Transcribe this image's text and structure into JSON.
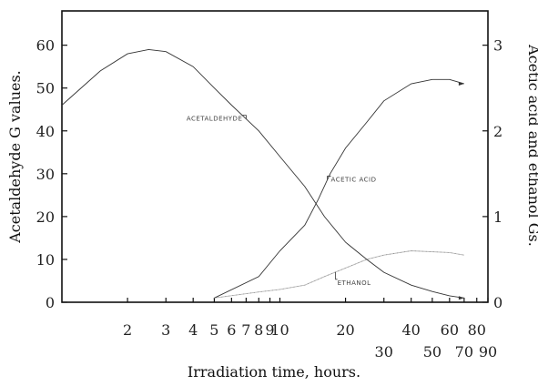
{
  "chart_data": {
    "type": "line",
    "xlabel": "Irradiation time, hours.",
    "ylabel_left": "Acetaldehyde G values.",
    "ylabel_right": "Acetic acid and ethanol Gs.",
    "x_scale": "log",
    "xlim": [
      1,
      90
    ],
    "ylim_left": [
      0,
      68
    ],
    "ylim_right": [
      0,
      3.4
    ],
    "x_ticks": [
      {
        "value": 2,
        "label": "2",
        "row": 1
      },
      {
        "value": 3,
        "label": "3",
        "row": 1
      },
      {
        "value": 4,
        "label": "4",
        "row": 1
      },
      {
        "value": 5,
        "label": "5",
        "row": 1
      },
      {
        "value": 6,
        "label": "6",
        "row": 1
      },
      {
        "value": 7,
        "label": "7",
        "row": 1
      },
      {
        "value": 8,
        "label": "8",
        "row": 1
      },
      {
        "value": 9,
        "label": "9",
        "row": 1
      },
      {
        "value": 10,
        "label": "10",
        "row": 1
      },
      {
        "value": 20,
        "label": "20",
        "row": 1
      },
      {
        "value": 30,
        "label": "30",
        "row": 2
      },
      {
        "value": 40,
        "label": "40",
        "row": 1
      },
      {
        "value": 50,
        "label": "50",
        "row": 2
      },
      {
        "value": 60,
        "label": "60",
        "row": 1
      },
      {
        "value": 70,
        "label": "70",
        "row": 2
      },
      {
        "value": 80,
        "label": "80",
        "row": 1
      },
      {
        "value": 90,
        "label": "90",
        "row": 2
      }
    ],
    "y_ticks_left": [
      0,
      10,
      20,
      30,
      40,
      50,
      60
    ],
    "y_ticks_right": [
      0,
      1,
      2,
      3
    ],
    "series": [
      {
        "name": "ACETALDEHYDE",
        "axis": "left",
        "x": [
          1,
          1.5,
          2,
          2.5,
          3,
          4,
          5,
          6,
          8,
          10,
          13,
          16,
          20,
          25,
          30,
          40,
          50,
          60,
          70
        ],
        "y": [
          46,
          54,
          58,
          59,
          58.5,
          55,
          50,
          46,
          40,
          34,
          27,
          20,
          14,
          10,
          7,
          4,
          2.5,
          1.5,
          1
        ]
      },
      {
        "name": "ACETIC ACID",
        "axis": "right",
        "x": [
          5,
          8,
          10,
          13,
          15,
          17,
          20,
          25,
          30,
          40,
          50,
          60,
          70
        ],
        "y": [
          0.05,
          0.3,
          0.6,
          0.9,
          1.2,
          1.5,
          1.8,
          2.1,
          2.35,
          2.55,
          2.6,
          2.6,
          2.55
        ]
      },
      {
        "name": "ETHANOL",
        "axis": "right",
        "x": [
          5,
          8,
          10,
          13,
          16,
          20,
          25,
          30,
          40,
          60,
          70
        ],
        "y": [
          0.05,
          0.12,
          0.15,
          0.2,
          0.3,
          0.4,
          0.5,
          0.55,
          0.6,
          0.58,
          0.55
        ]
      }
    ],
    "annotations": [
      {
        "text": "ACETALDEHYDE",
        "series": "ACETALDEHYDE"
      },
      {
        "text": "ACETIC ACID",
        "series": "ACETIC ACID"
      },
      {
        "text": "ETHANOL",
        "series": "ETHANOL"
      }
    ]
  }
}
